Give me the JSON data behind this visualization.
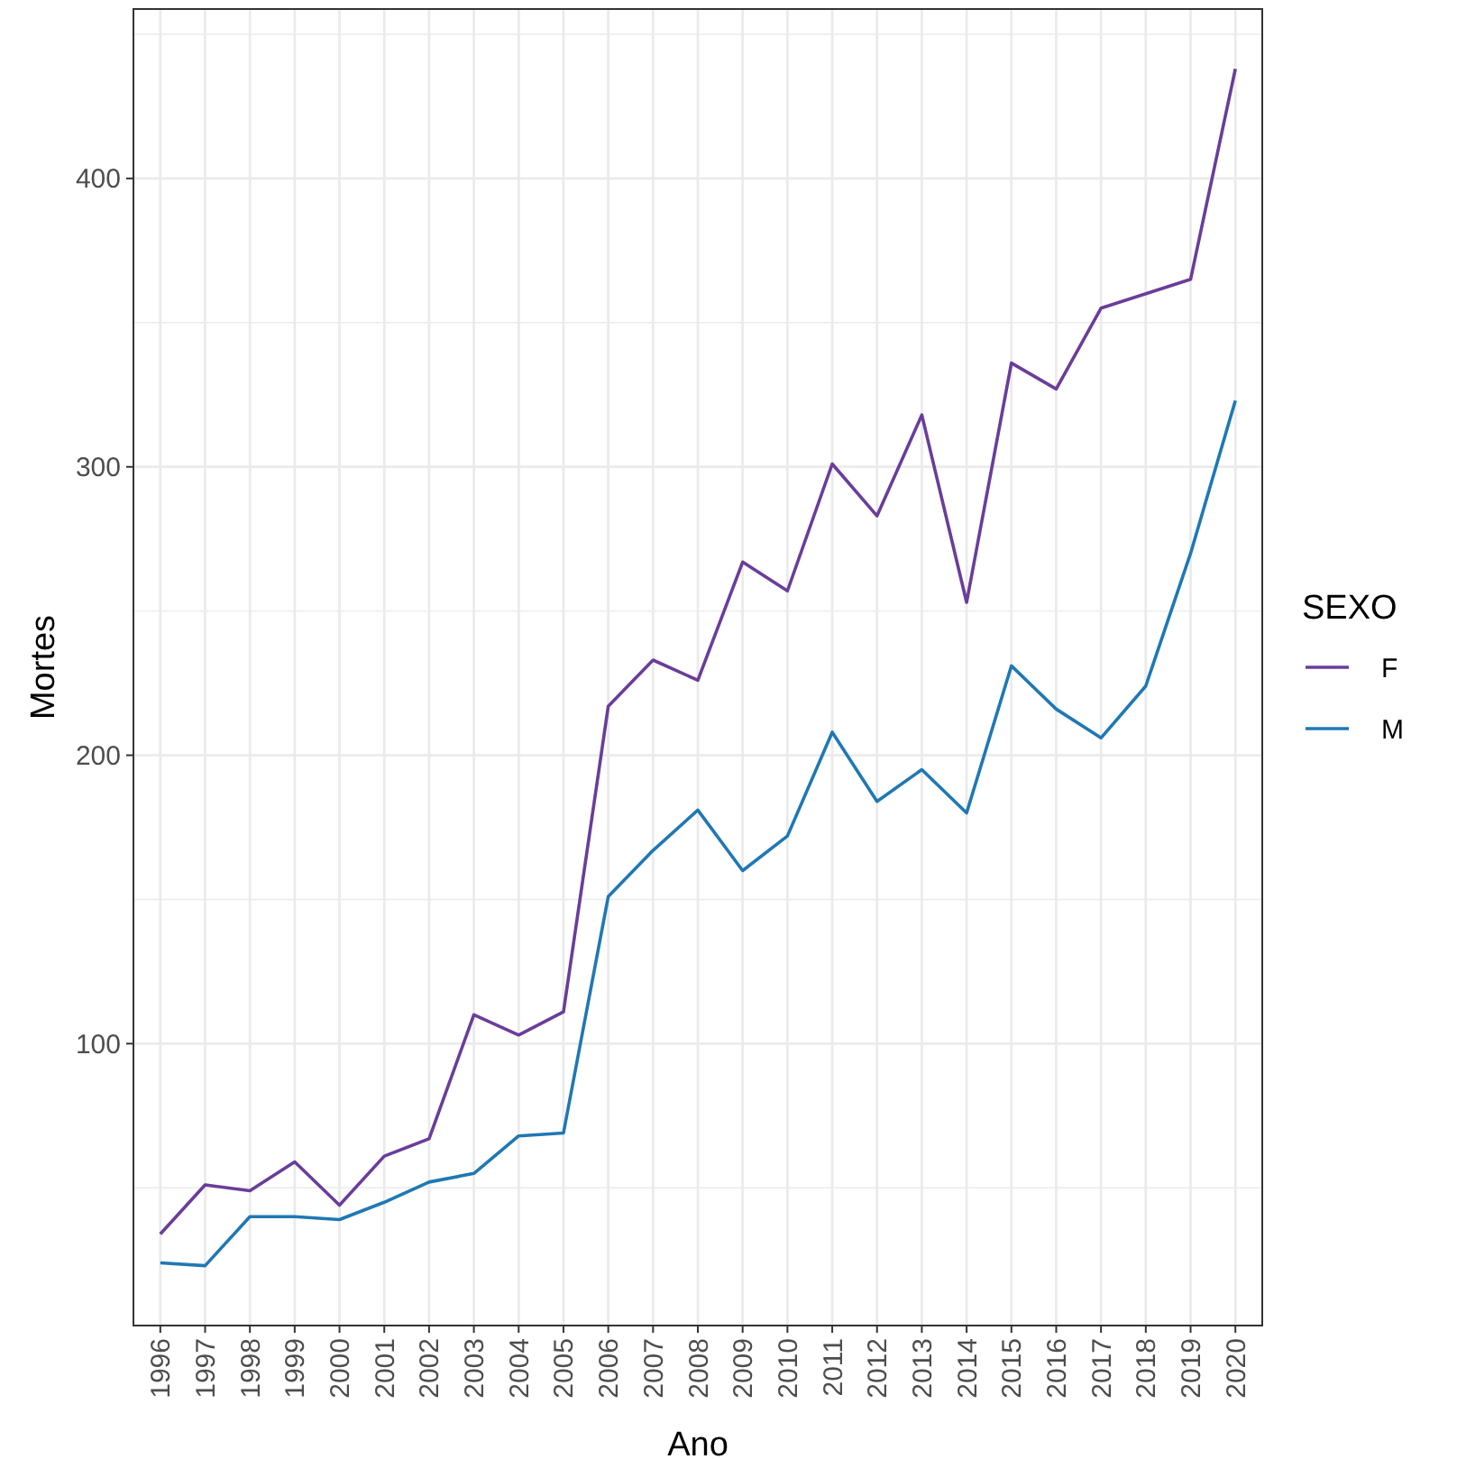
{
  "chart_data": {
    "type": "line",
    "xlabel": "Ano",
    "ylabel": "Mortes",
    "legend_title": "SEXO",
    "categories": [
      "1996",
      "1997",
      "1998",
      "1999",
      "2000",
      "2001",
      "2002",
      "2003",
      "2004",
      "2005",
      "2006",
      "2007",
      "2008",
      "2009",
      "2010",
      "2011",
      "2012",
      "2013",
      "2014",
      "2015",
      "2016",
      "2017",
      "2018",
      "2019",
      "2020"
    ],
    "series": [
      {
        "name": "F",
        "color": "#6a3d9a",
        "values": [
          34,
          51,
          49,
          59,
          44,
          61,
          67,
          110,
          103,
          111,
          217,
          233,
          226,
          267,
          257,
          301,
          283,
          318,
          253,
          336,
          327,
          355,
          360,
          365,
          438
        ]
      },
      {
        "name": "M",
        "color": "#1f78b4",
        "values": [
          24,
          23,
          40,
          40,
          39,
          45,
          52,
          55,
          68,
          69,
          151,
          167,
          181,
          160,
          172,
          208,
          184,
          195,
          180,
          231,
          216,
          206,
          224,
          270,
          323
        ]
      }
    ],
    "ylim": [
      2.25,
      458.75
    ],
    "yticks": [
      100,
      200,
      300,
      400
    ],
    "grid": true,
    "legend": "right",
    "marker": "none",
    "line_style": "solid"
  }
}
